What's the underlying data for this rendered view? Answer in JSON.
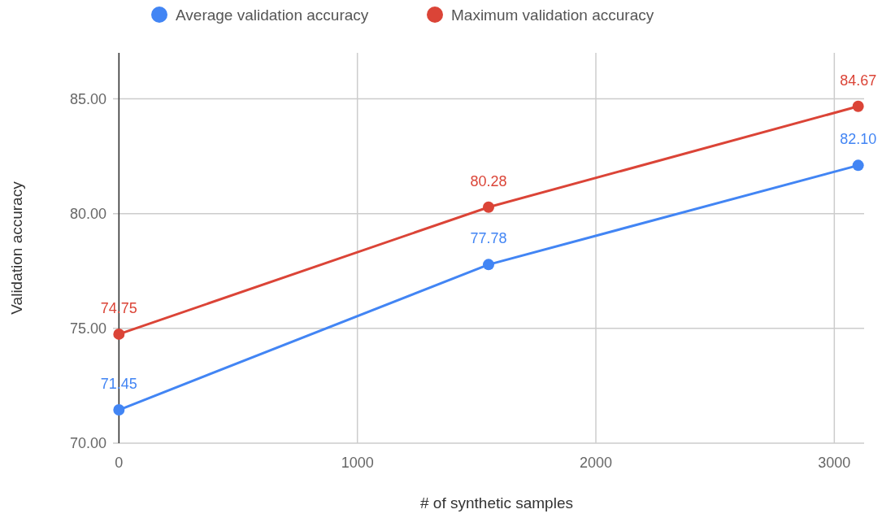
{
  "chart_data": {
    "type": "line",
    "xlabel": "# of synthetic samples",
    "ylabel": "Validation accuracy",
    "x": [
      0,
      1550,
      3100
    ],
    "series": [
      {
        "name": "Average validation accuracy",
        "color": "#4285f4",
        "values": [
          71.45,
          77.78,
          82.1
        ],
        "value_labels": [
          "71.45",
          "77.78",
          "82.10"
        ]
      },
      {
        "name": "Maximum validation accuracy",
        "color": "#db4437",
        "values": [
          74.75,
          80.28,
          84.67
        ],
        "value_labels": [
          "74.75",
          "80.28",
          "84.67"
        ]
      }
    ],
    "xlim": [
      -25,
      3125
    ],
    "xticks": [
      0,
      1000,
      2000,
      3000
    ],
    "ylim": [
      70,
      87
    ],
    "yticks": [
      {
        "value": 70,
        "label": "70.00"
      },
      {
        "value": 75,
        "label": "75.00"
      },
      {
        "value": 80,
        "label": "80.00"
      },
      {
        "value": 85,
        "label": "85.00"
      }
    ],
    "grid": true,
    "legend": "top",
    "marker": "circle",
    "line_style": "solid"
  }
}
